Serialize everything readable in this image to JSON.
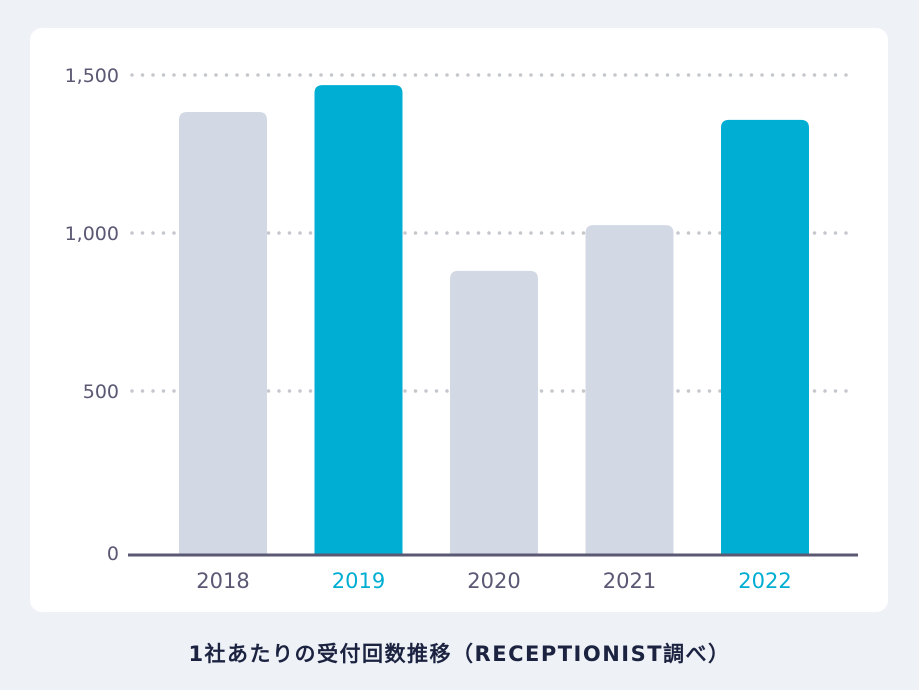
{
  "chart_data": {
    "type": "bar",
    "title": "1社あたりの受付回数推移（RECEPTIONIST調べ）",
    "xlabel": "",
    "ylabel": "",
    "categories": [
      "2018",
      "2019",
      "2020",
      "2021",
      "2022"
    ],
    "values": [
      1383,
      1468,
      880,
      1025,
      1358
    ],
    "highlighted": [
      false,
      true,
      false,
      false,
      true
    ],
    "ylim": [
      0,
      1500
    ],
    "yticks": [
      0,
      500,
      1000,
      1500
    ],
    "ytick_labels": [
      "0",
      "500",
      "1,000",
      "1,500"
    ],
    "grid": true,
    "colors": {
      "highlight": "#00aed3",
      "normal": "#d3d9e4",
      "axis": "#5a5873",
      "grid": "#c4c7cc",
      "label": "#5a5873"
    }
  }
}
